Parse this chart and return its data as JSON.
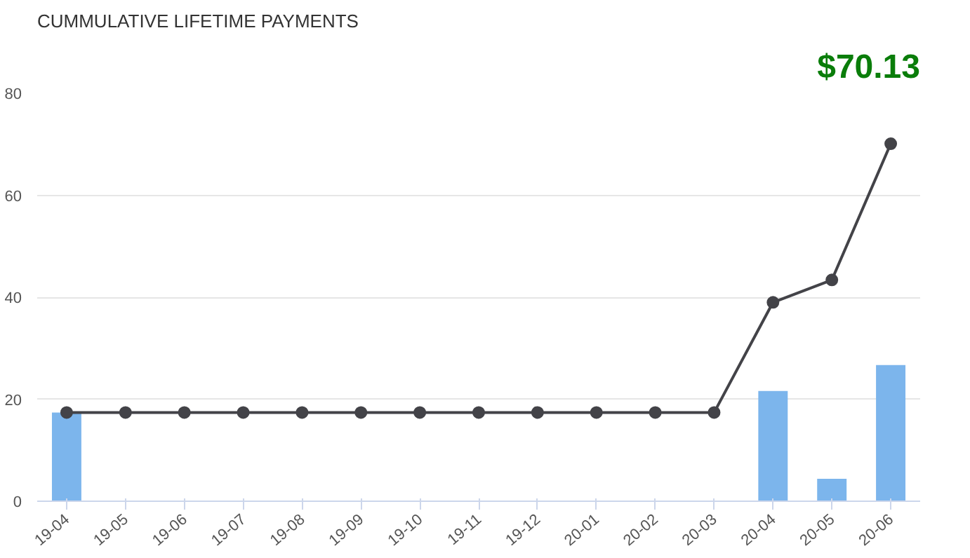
{
  "chart_data": {
    "type": "bar",
    "title": "CUMMULATIVE LIFETIME PAYMENTS",
    "annotations": [
      "$70.13"
    ],
    "categories": [
      "19-04",
      "19-05",
      "19-06",
      "19-07",
      "19-08",
      "19-09",
      "19-10",
      "19-11",
      "19-12",
      "20-01",
      "20-02",
      "20-03",
      "20-04",
      "20-05",
      "20-06"
    ],
    "series": [
      {
        "color": "#7cb5ec",
        "values": [
          17.4,
          null,
          null,
          null,
          null,
          null,
          null,
          null,
          null,
          null,
          null,
          null,
          21.6,
          4.4,
          26.7
        ]
      },
      {
        "type": "line",
        "color": "#434348",
        "marker": "circle",
        "values": [
          17.4,
          17.4,
          17.4,
          17.4,
          17.4,
          17.4,
          17.4,
          17.4,
          17.4,
          17.4,
          17.4,
          17.4,
          39,
          43.4,
          70.1
        ]
      }
    ],
    "ylim": [
      0,
      80
    ],
    "yticks": [
      0,
      20,
      40,
      60,
      80
    ],
    "grid": "y"
  }
}
